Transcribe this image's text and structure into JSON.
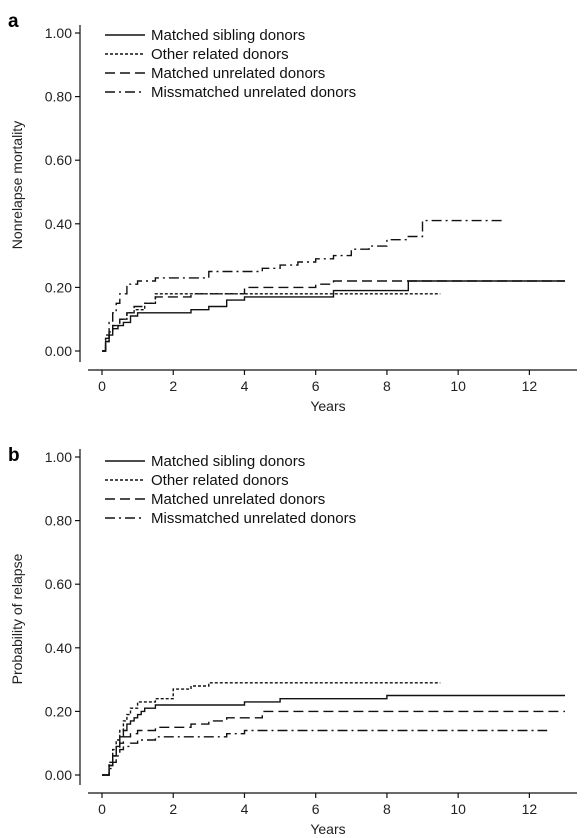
{
  "chart_data": [
    {
      "panel": "a",
      "type": "line",
      "xlabel": "Years",
      "ylabel": "Nonrelapse mortality",
      "xlim": [
        0,
        13
      ],
      "ylim": [
        0,
        1
      ],
      "xticks": [
        0,
        2,
        4,
        6,
        8,
        10,
        12
      ],
      "yticks": [
        "0.00",
        "0.20",
        "0.40",
        "0.60",
        "0.80",
        "1.00"
      ],
      "legend_position": "top-left",
      "series": [
        {
          "name": "Matched sibling donors",
          "style": "solid",
          "x": [
            0,
            0.1,
            0.2,
            0.3,
            0.45,
            0.6,
            0.8,
            1.0,
            1.3,
            2.0,
            2.5,
            3.0,
            3.5,
            4.0,
            4.5,
            6.0,
            6.5,
            8.0,
            8.6,
            13.0
          ],
          "y": [
            0,
            0.03,
            0.05,
            0.07,
            0.08,
            0.09,
            0.11,
            0.12,
            0.12,
            0.12,
            0.13,
            0.14,
            0.16,
            0.17,
            0.17,
            0.17,
            0.19,
            0.19,
            0.22,
            0.22
          ]
        },
        {
          "name": "Other related donors",
          "style": "dotted",
          "x": [
            0,
            0.1,
            0.2,
            0.3,
            0.5,
            0.7,
            0.9,
            1.2,
            1.5,
            2.0,
            4.0,
            6.5,
            9.5
          ],
          "y": [
            0,
            0.03,
            0.06,
            0.08,
            0.1,
            0.12,
            0.13,
            0.15,
            0.18,
            0.18,
            0.18,
            0.18,
            0.18
          ]
        },
        {
          "name": "Matched unrelated donors",
          "style": "dashed",
          "x": [
            0,
            0.1,
            0.2,
            0.3,
            0.5,
            0.7,
            0.9,
            1.2,
            1.5,
            2.0,
            2.5,
            4.0,
            4.5,
            6.0,
            6.5,
            8.5,
            13.0
          ],
          "y": [
            0,
            0.04,
            0.06,
            0.08,
            0.1,
            0.12,
            0.14,
            0.15,
            0.17,
            0.17,
            0.18,
            0.2,
            0.2,
            0.21,
            0.22,
            0.22,
            0.22
          ]
        },
        {
          "name": "Missmatched unrelated donors",
          "style": "dashdot",
          "x": [
            0,
            0.1,
            0.2,
            0.3,
            0.4,
            0.5,
            0.7,
            1.0,
            1.5,
            2.0,
            3.0,
            4.0,
            4.5,
            5.0,
            5.5,
            6.0,
            6.5,
            7.0,
            7.5,
            8.0,
            8.6,
            9.0,
            11.3
          ],
          "y": [
            0,
            0.05,
            0.09,
            0.12,
            0.15,
            0.18,
            0.21,
            0.22,
            0.23,
            0.23,
            0.25,
            0.25,
            0.26,
            0.27,
            0.28,
            0.29,
            0.3,
            0.32,
            0.33,
            0.35,
            0.36,
            0.41,
            0.41
          ]
        }
      ]
    },
    {
      "panel": "b",
      "type": "line",
      "xlabel": "Years",
      "ylabel": "Probability of relapse",
      "xlim": [
        0,
        13
      ],
      "ylim": [
        0,
        1
      ],
      "xticks": [
        0,
        2,
        4,
        6,
        8,
        10,
        12
      ],
      "yticks": [
        "0.00",
        "0.20",
        "0.40",
        "0.60",
        "0.80",
        "1.00"
      ],
      "legend_position": "top-left",
      "series": [
        {
          "name": "Matched sibling donors",
          "style": "solid",
          "x": [
            0,
            0.2,
            0.3,
            0.4,
            0.5,
            0.6,
            0.7,
            0.8,
            0.9,
            1.0,
            1.1,
            1.2,
            1.5,
            2.0,
            3.5,
            4.0,
            5.0,
            8.0,
            13.0
          ],
          "y": [
            0,
            0.03,
            0.06,
            0.09,
            0.12,
            0.14,
            0.16,
            0.17,
            0.18,
            0.19,
            0.2,
            0.21,
            0.22,
            0.22,
            0.22,
            0.23,
            0.24,
            0.25,
            0.25
          ]
        },
        {
          "name": "Other related donors",
          "style": "dotted",
          "x": [
            0,
            0.2,
            0.3,
            0.4,
            0.5,
            0.6,
            0.7,
            0.8,
            1.0,
            1.5,
            2.0,
            2.5,
            3.0,
            9.5
          ],
          "y": [
            0,
            0.04,
            0.08,
            0.11,
            0.14,
            0.17,
            0.19,
            0.21,
            0.23,
            0.24,
            0.27,
            0.28,
            0.29,
            0.29
          ]
        },
        {
          "name": "Matched unrelated donors",
          "style": "dashed",
          "x": [
            0,
            0.2,
            0.3,
            0.4,
            0.5,
            0.6,
            0.8,
            1.0,
            1.5,
            2.0,
            2.5,
            3.0,
            3.5,
            4.0,
            4.5,
            13.0
          ],
          "y": [
            0,
            0.03,
            0.06,
            0.08,
            0.1,
            0.12,
            0.13,
            0.14,
            0.15,
            0.15,
            0.16,
            0.17,
            0.18,
            0.18,
            0.2,
            0.2
          ]
        },
        {
          "name": "Missmatched unrelated donors",
          "style": "dashdot",
          "x": [
            0,
            0.2,
            0.3,
            0.4,
            0.5,
            0.6,
            0.8,
            1.0,
            1.5,
            2.0,
            3.5,
            4.0,
            12.5
          ],
          "y": [
            0,
            0.02,
            0.04,
            0.06,
            0.08,
            0.09,
            0.1,
            0.11,
            0.12,
            0.12,
            0.13,
            0.14,
            0.14
          ]
        }
      ]
    }
  ]
}
